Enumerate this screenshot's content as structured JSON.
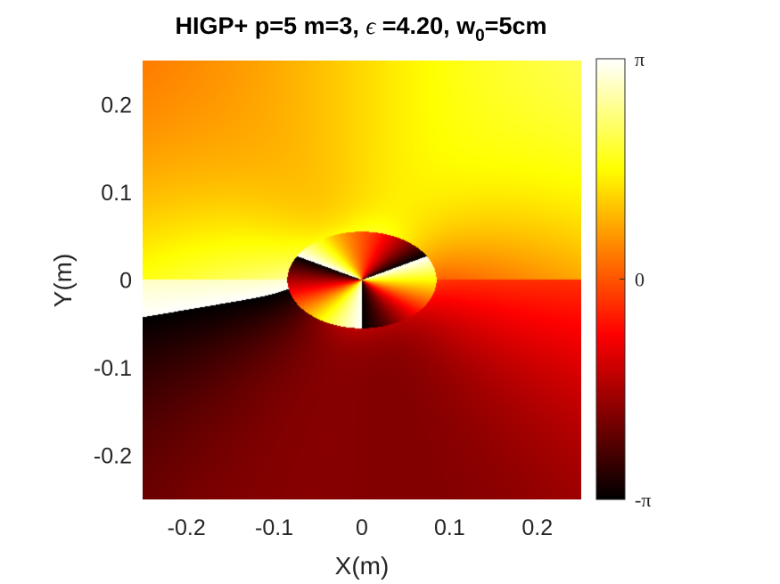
{
  "chart_data": {
    "type": "heatmap",
    "title": {
      "main": "HIGP+ p=5 m=3, ",
      "epsilon_symbol": "ϵ",
      "epsilon_part": " =4.20, w",
      "w_subscript": "0",
      "tail": "=5cm"
    },
    "xlabel": "X(m)",
    "ylabel": "Y(m)",
    "xlim": [
      -0.25,
      0.25
    ],
    "ylim": [
      -0.25,
      0.25
    ],
    "xticks": [
      -0.2,
      -0.1,
      0,
      0.1,
      0.2
    ],
    "xtick_labels": [
      "-0.2",
      "-0.1",
      "0",
      "0.1",
      "0.2"
    ],
    "yticks": [
      0.2,
      0.1,
      0,
      -0.1,
      -0.2
    ],
    "ytick_labels": [
      "0.2",
      "0.1",
      "0",
      "-0.1",
      "-0.2"
    ],
    "colorbar": {
      "range": [
        -3.14159,
        3.14159
      ],
      "tick_values": [
        3.14159,
        0,
        -3.14159
      ],
      "tick_labels": [
        "π",
        "0",
        "-π"
      ],
      "colormap": "hot"
    },
    "field": {
      "quantity": "phase",
      "topological_charge": 3,
      "beam_waist_m": 0.05,
      "core_ellipse": {
        "center_x": 0.0,
        "center_y": 0.0,
        "semi_axis_x": 0.085,
        "semi_axis_y": 0.055
      }
    }
  }
}
